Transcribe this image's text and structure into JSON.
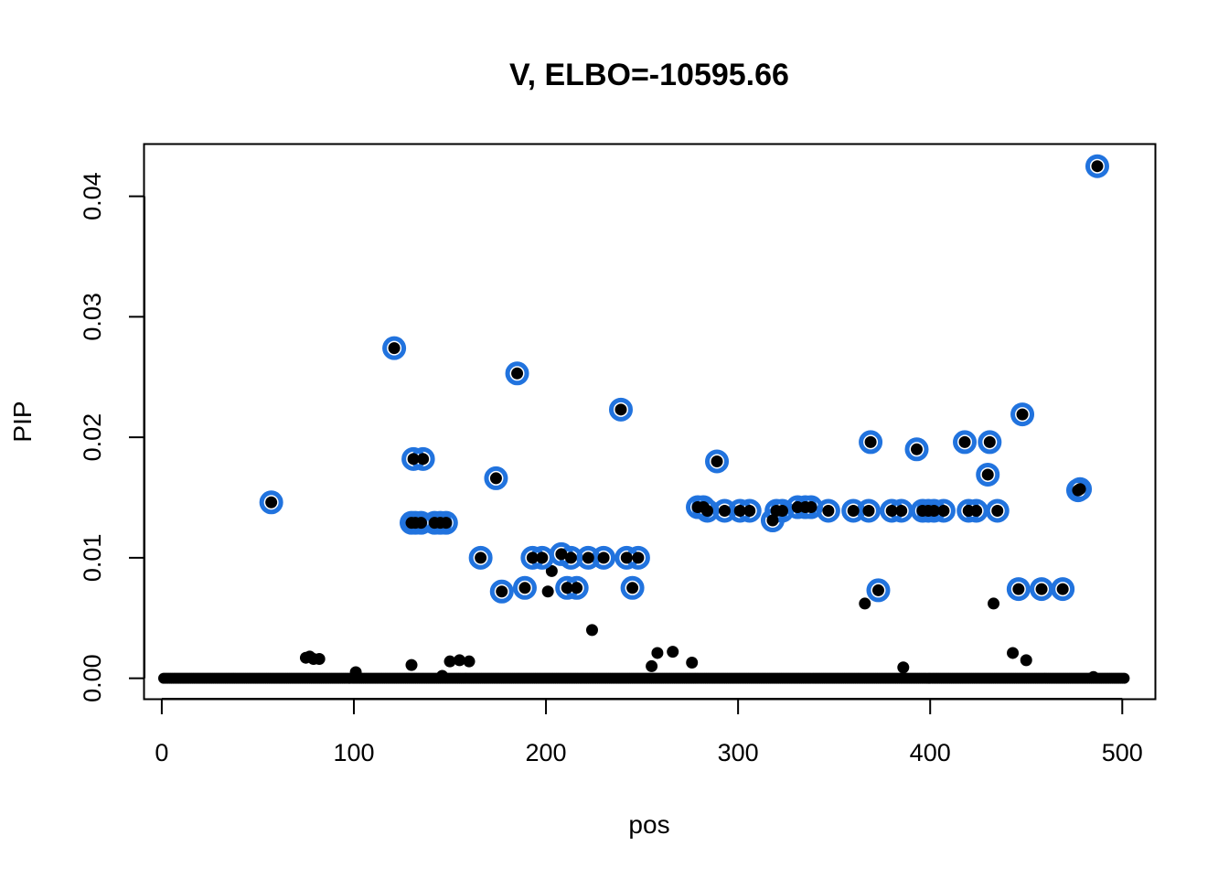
{
  "chart_data": {
    "type": "scatter",
    "title": "V, ELBO=-10595.66",
    "xlabel": "pos",
    "ylabel": "PIP",
    "xlim": [
      -9,
      517
    ],
    "ylim": [
      -0.0017,
      0.0443
    ],
    "x_ticks": [
      0,
      100,
      200,
      300,
      400,
      500
    ],
    "x_tick_labels": [
      "0",
      "100",
      "200",
      "300",
      "400",
      "500"
    ],
    "y_ticks": [
      0,
      0.01,
      0.02,
      0.03,
      0.04
    ],
    "y_tick_labels": [
      "0.00",
      "0.01",
      "0.02",
      "0.03",
      "0.04"
    ],
    "grid": false,
    "legend": "none",
    "colors": {
      "points": "#000000",
      "highlight_ring": "#2173DE"
    },
    "zero_baseline": {
      "from": 1,
      "to": 501,
      "value": 0
    },
    "series": [
      {
        "style": "black filled dots",
        "points": [
          [
            75,
            0.0017
          ],
          [
            77,
            0.0018
          ],
          [
            79,
            0.0016
          ],
          [
            82,
            0.0016
          ],
          [
            101,
            0.0005
          ],
          [
            130,
            0.0011
          ],
          [
            146,
            0.0002
          ],
          [
            150,
            0.0014
          ],
          [
            155,
            0.0015
          ],
          [
            160,
            0.0014
          ],
          [
            201,
            0.0072
          ],
          [
            203,
            0.0089
          ],
          [
            224,
            0.004
          ],
          [
            255,
            0.001
          ],
          [
            258,
            0.0021
          ],
          [
            266,
            0.0022
          ],
          [
            276,
            0.0013
          ],
          [
            366,
            0.0062
          ],
          [
            386,
            0.0009
          ],
          [
            433,
            0.0062
          ],
          [
            443,
            0.0021
          ],
          [
            450,
            0.0015
          ],
          [
            485,
            0.0001
          ]
        ]
      },
      {
        "style": "black dots circled in blue",
        "points": [
          [
            57,
            0.0146
          ],
          [
            121,
            0.0274
          ],
          [
            130,
            0.0129
          ],
          [
            131,
            0.0182
          ],
          [
            132,
            0.0129
          ],
          [
            135,
            0.0129
          ],
          [
            136,
            0.0182
          ],
          [
            142,
            0.0129
          ],
          [
            145,
            0.0129
          ],
          [
            148,
            0.0129
          ],
          [
            166,
            0.01
          ],
          [
            174,
            0.0166
          ],
          [
            177,
            0.0072
          ],
          [
            185,
            0.0253
          ],
          [
            189,
            0.0075
          ],
          [
            193,
            0.01
          ],
          [
            198,
            0.01
          ],
          [
            208,
            0.0103
          ],
          [
            211,
            0.0075
          ],
          [
            213,
            0.01
          ],
          [
            216,
            0.0075
          ],
          [
            222,
            0.01
          ],
          [
            230,
            0.01
          ],
          [
            239,
            0.0223
          ],
          [
            242,
            0.01
          ],
          [
            245,
            0.0075
          ],
          [
            248,
            0.01
          ],
          [
            279,
            0.0142
          ],
          [
            282,
            0.0142
          ],
          [
            284,
            0.0139
          ],
          [
            289,
            0.018
          ],
          [
            293,
            0.0139
          ],
          [
            301,
            0.0139
          ],
          [
            306,
            0.0139
          ],
          [
            318,
            0.0131
          ],
          [
            320,
            0.0139
          ],
          [
            323,
            0.0139
          ],
          [
            331,
            0.0142
          ],
          [
            335,
            0.0142
          ],
          [
            338,
            0.0142
          ],
          [
            347,
            0.0139
          ],
          [
            360,
            0.0139
          ],
          [
            368,
            0.0139
          ],
          [
            369,
            0.0196
          ],
          [
            373,
            0.0073
          ],
          [
            380,
            0.0139
          ],
          [
            385,
            0.0139
          ],
          [
            393,
            0.019
          ],
          [
            396,
            0.0139
          ],
          [
            399,
            0.0139
          ],
          [
            402,
            0.0139
          ],
          [
            407,
            0.0139
          ],
          [
            418,
            0.0196
          ],
          [
            420,
            0.0139
          ],
          [
            424,
            0.0139
          ],
          [
            430,
            0.0169
          ],
          [
            431,
            0.0196
          ],
          [
            435,
            0.0139
          ],
          [
            446,
            0.0074
          ],
          [
            448,
            0.0219
          ],
          [
            458,
            0.0074
          ],
          [
            469,
            0.0074
          ],
          [
            477,
            0.0156
          ],
          [
            478,
            0.0157
          ],
          [
            487,
            0.0425
          ]
        ]
      }
    ]
  }
}
